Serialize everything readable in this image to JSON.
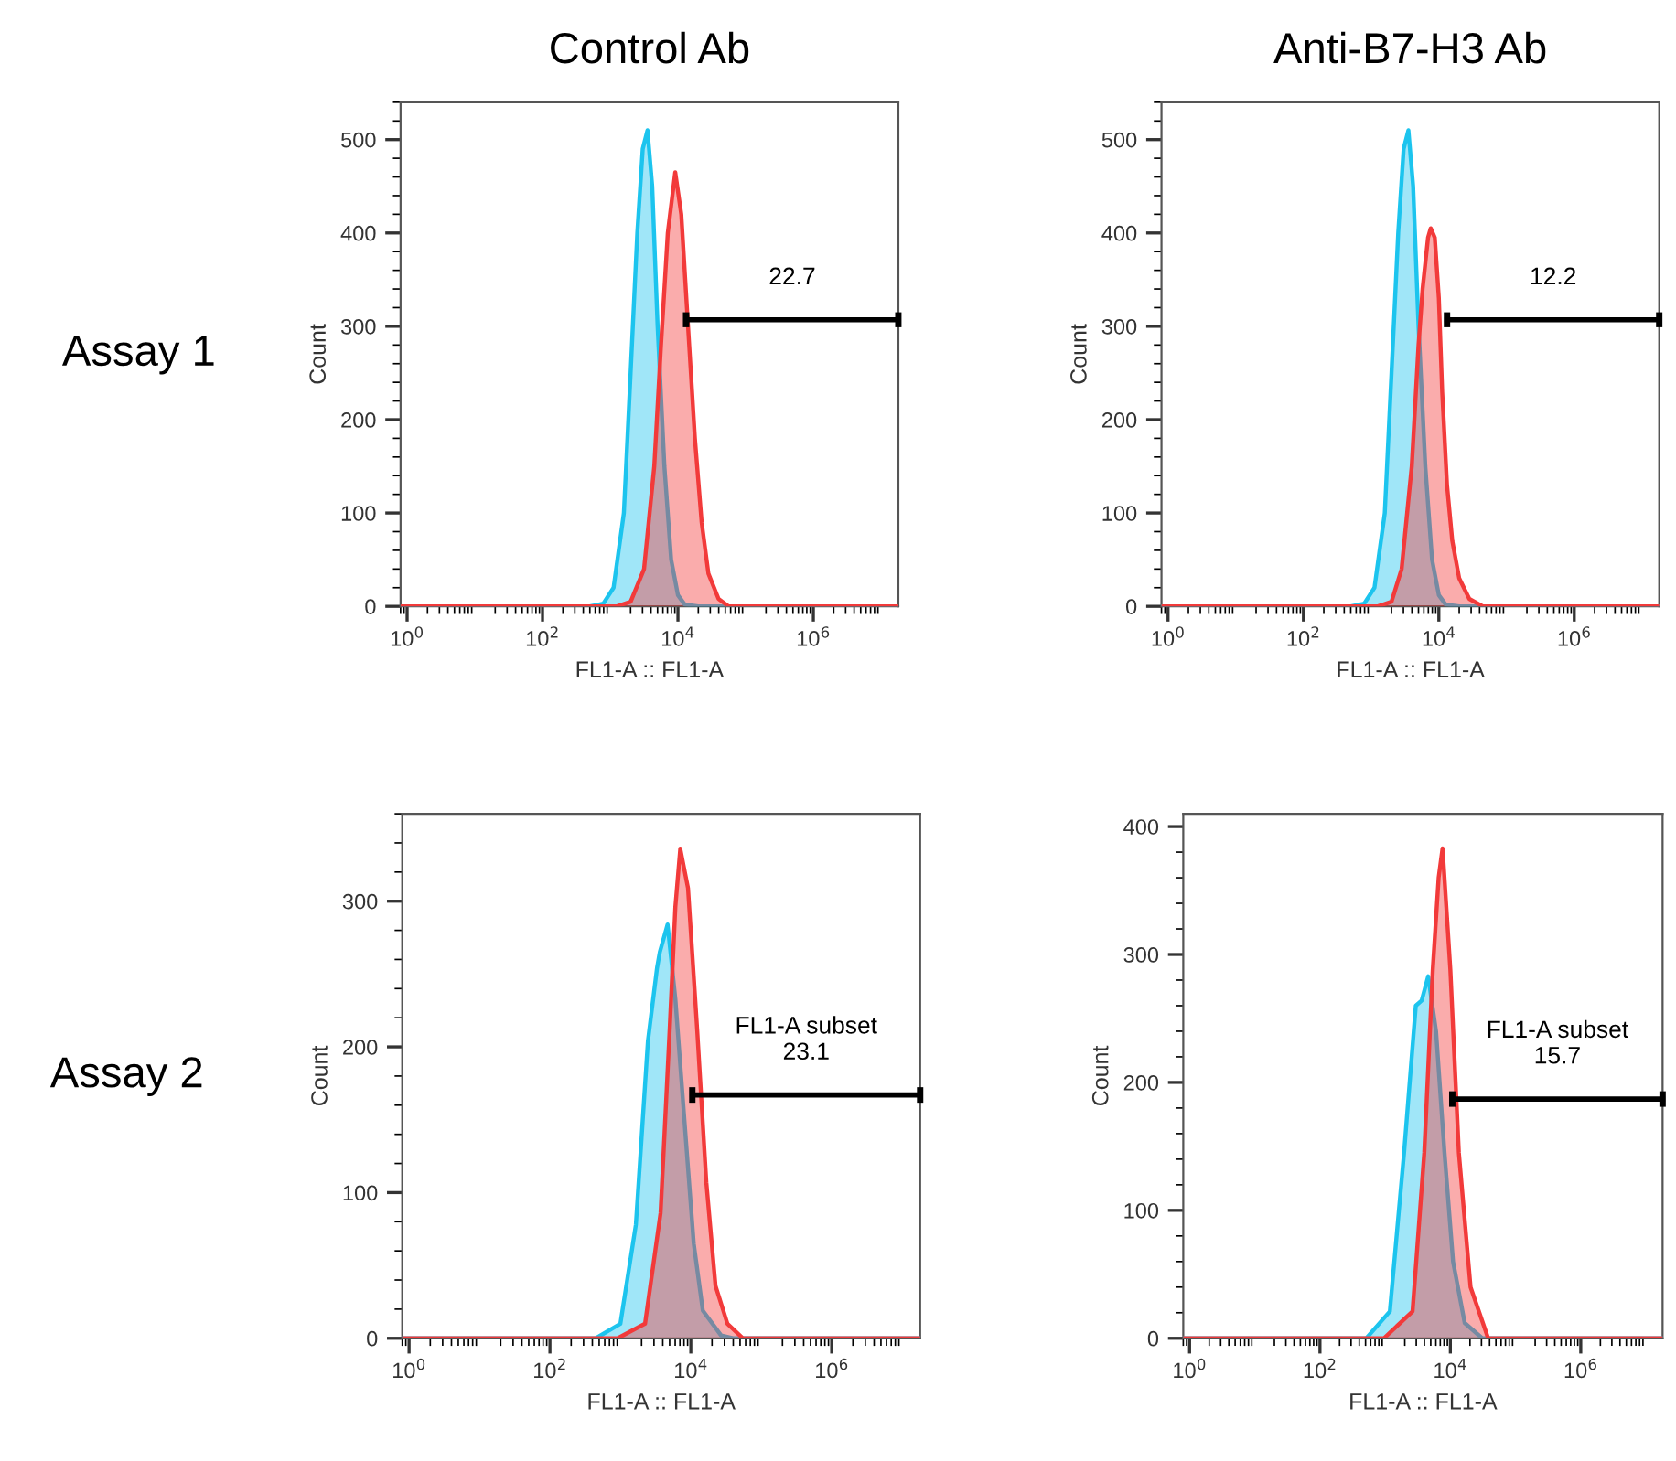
{
  "chart_data": [
    {
      "type": "area",
      "title": "Control Ab",
      "xlabel": "FL1-A :: FL1-A",
      "ylabel": "Count",
      "log": "x",
      "grid": false,
      "legend": false,
      "xlim": [
        0.8,
        18000000
      ],
      "xticks": [
        {
          "value": 1,
          "label": "10$^{0}$"
        },
        {
          "value": 100,
          "label": "10$^{2}$"
        },
        {
          "value": 10000,
          "label": "10$^{4}$"
        },
        {
          "value": 1000000,
          "label": "10$^{6}$"
        }
      ],
      "ylim": [
        0,
        540
      ],
      "yticks": [
        0,
        100,
        200,
        300,
        400,
        500
      ],
      "annotations": [
        "Assay 1"
      ],
      "series": [
        {
          "color": "#1cc4ee",
          "x": [
            0.8,
            500,
            790,
            1120,
            1590,
            2000,
            2510,
            3020,
            3550,
            4170,
            5010,
            6310,
            7940,
            10000,
            12600,
            20000,
            18000000
          ],
          "values": [
            0,
            0,
            3,
            20,
            100,
            250,
            400,
            490,
            510,
            450,
            300,
            150,
            50,
            12,
            2,
            0,
            0
          ]
        },
        {
          "color": "#f23a3a",
          "x": [
            0.8,
            1260,
            2000,
            3160,
            4470,
            5620,
            7080,
            9120,
            11200,
            14100,
            17800,
            22400,
            28200,
            39800,
            56200,
            18000000
          ],
          "values": [
            0,
            0,
            5,
            40,
            150,
            280,
            400,
            465,
            420,
            300,
            180,
            90,
            35,
            8,
            0,
            0
          ]
        },
        {
          "type": "line",
          "name": "22.7",
          "color": "#000000",
          "x": [
            13200,
            18000000
          ],
          "values": [
            307,
            307
          ]
        }
      ]
    },
    {
      "type": "area",
      "title": "Anti-B7-H3 Ab",
      "xlabel": "FL1-A :: FL1-A",
      "ylabel": "Count",
      "log": "x",
      "grid": false,
      "legend": false,
      "xlim": [
        0.8,
        18000000
      ],
      "xticks": [
        {
          "value": 1,
          "label": "10$^{0}$"
        },
        {
          "value": 100,
          "label": "10$^{2}$"
        },
        {
          "value": 10000,
          "label": "10$^{4}$"
        },
        {
          "value": 1000000,
          "label": "10$^{6}$"
        }
      ],
      "ylim": [
        0,
        540
      ],
      "yticks": [
        0,
        100,
        200,
        300,
        400,
        500
      ],
      "series": [
        {
          "color": "#1cc4ee",
          "x": [
            0.8,
            500,
            790,
            1120,
            1590,
            2000,
            2510,
            3020,
            3550,
            4170,
            5010,
            6310,
            7940,
            10000,
            12600,
            20000,
            18000000
          ],
          "values": [
            0,
            0,
            3,
            20,
            100,
            250,
            400,
            490,
            510,
            450,
            300,
            150,
            50,
            12,
            2,
            0,
            0
          ]
        },
        {
          "color": "#f23a3a",
          "x": [
            0.8,
            1260,
            2000,
            2820,
            3980,
            5010,
            5750,
            6920,
            7590,
            8710,
            10000,
            11200,
            13200,
            15800,
            20000,
            28200,
            44700,
            18000000
          ],
          "values": [
            0,
            0,
            5,
            40,
            150,
            280,
            340,
            395,
            405,
            395,
            330,
            230,
            130,
            70,
            30,
            8,
            0,
            0
          ]
        },
        {
          "type": "line",
          "name": "12.2",
          "color": "#000000",
          "x": [
            13200,
            18000000
          ],
          "values": [
            307,
            307
          ]
        }
      ]
    },
    {
      "type": "area",
      "xlabel": "FL1-A :: FL1-A",
      "ylabel": "Count",
      "log": "x",
      "grid": false,
      "legend": false,
      "xlim": [
        0.8,
        18000000
      ],
      "xticks": [
        {
          "value": 1,
          "label": "10$^{0}$"
        },
        {
          "value": 100,
          "label": "10$^{2}$"
        },
        {
          "value": 10000,
          "label": "10$^{4}$"
        },
        {
          "value": 1000000,
          "label": "10$^{6}$"
        }
      ],
      "ylim": [
        0,
        360
      ],
      "yticks": [
        0,
        100,
        200,
        300
      ],
      "annotations": [
        "Assay 2"
      ],
      "series": [
        {
          "color": "#1cc4ee",
          "x": [
            0.8,
            447,
            1000,
            1660,
            2460,
            3310,
            3630,
            4680,
            6030,
            8130,
            11000,
            14800,
            26900,
            39800,
            18000000
          ],
          "values": [
            0,
            0,
            10,
            78,
            204,
            254,
            265,
            284,
            233,
            149,
            65,
            19,
            2,
            0,
            0
          ]
        },
        {
          "color": "#f23a3a",
          "x": [
            0.8,
            912,
            2240,
            3720,
            5010,
            6030,
            7080,
            9120,
            12300,
            16600,
            22400,
            33100,
            55000,
            18000000
          ],
          "values": [
            0,
            0,
            10,
            86,
            212,
            296,
            336,
            309,
            212,
            107,
            36,
            10,
            0,
            0
          ]
        },
        {
          "type": "line",
          "name": "FL1-A subset\n23.1",
          "color": "#000000",
          "x": [
            10500,
            18000000
          ],
          "values": [
            167,
            167
          ]
        }
      ]
    },
    {
      "type": "area",
      "xlabel": "FL1-A :: FL1-A",
      "ylabel": "Count",
      "log": "x",
      "grid": false,
      "legend": false,
      "xlim": [
        0.8,
        18000000
      ],
      "xticks": [
        {
          "value": 1,
          "label": "10$^{0}$"
        },
        {
          "value": 100,
          "label": "10$^{2}$"
        },
        {
          "value": 10000,
          "label": "10$^{4}$"
        },
        {
          "value": 1000000,
          "label": "10$^{6}$"
        }
      ],
      "ylim": [
        0,
        410
      ],
      "yticks": [
        0,
        100,
        200,
        300,
        400
      ],
      "series": [
        {
          "color": "#1cc4ee",
          "x": [
            0.8,
            513,
            1180,
            1950,
            2950,
            3630,
            4570,
            6030,
            8130,
            11000,
            16600,
            30900,
            18000000
          ],
          "values": [
            0,
            0,
            21,
            145,
            260,
            264,
            283,
            240,
            145,
            60,
            12,
            0,
            0
          ]
        },
        {
          "color": "#f23a3a",
          "x": [
            0.8,
            955,
            2630,
            3980,
            5370,
            6610,
            7590,
            10000,
            13500,
            20400,
            38000,
            18000000
          ],
          "values": [
            0,
            0,
            21,
            145,
            288,
            360,
            383,
            288,
            145,
            40,
            0,
            0
          ]
        },
        {
          "type": "line",
          "name": "FL1-A subset\n15.7",
          "color": "#000000",
          "x": [
            10700,
            18000000
          ],
          "values": [
            187,
            187
          ]
        }
      ]
    }
  ]
}
